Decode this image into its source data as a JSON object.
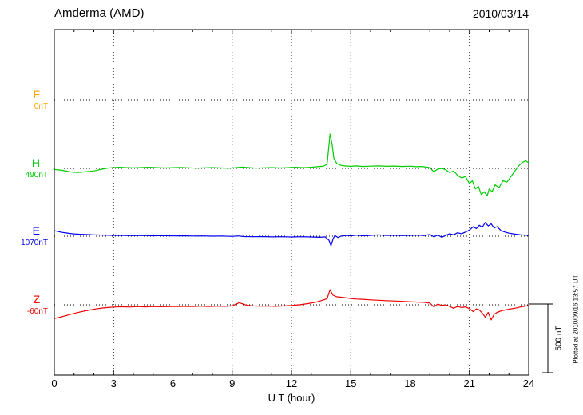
{
  "header": {
    "title": "Amderma (AMD)",
    "date": "2010/03/14"
  },
  "footer": {
    "plotted_at": "Plotted at 2010/09/16 13:57 UT"
  },
  "chart_data": {
    "type": "line",
    "title": "Amderma (AMD)",
    "date": "2010/03/14",
    "xlabel": "U T (hour)",
    "ylabel": "",
    "x_range": [
      0,
      24
    ],
    "x_ticks": [
      0,
      3,
      6,
      9,
      12,
      15,
      18,
      21,
      24
    ],
    "grid": "dotted-vertical-every-3h-and-dotted-horizontal-baselines",
    "legend_position": "left-margin",
    "scale_bar": {
      "label": "500 nT",
      "value_nT": 500
    },
    "series": [
      {
        "name": "F",
        "label": "F",
        "baseline_label": "0nT",
        "baseline_nT": 0,
        "color": "#FFA500",
        "points": []
      },
      {
        "name": "H",
        "label": "H",
        "baseline_label": "490nT",
        "baseline_nT": 490,
        "color": "#00CC00",
        "points": [
          [
            0,
            -8
          ],
          [
            0.3,
            -12
          ],
          [
            0.6,
            -20
          ],
          [
            0.9,
            -28
          ],
          [
            1.2,
            -30
          ],
          [
            1.5,
            -26
          ],
          [
            1.8,
            -22
          ],
          [
            2.1,
            -16
          ],
          [
            2.4,
            -6
          ],
          [
            2.7,
            2
          ],
          [
            3,
            6
          ],
          [
            3.3,
            8
          ],
          [
            3.6,
            6
          ],
          [
            4,
            4
          ],
          [
            4.4,
            6
          ],
          [
            4.8,
            8
          ],
          [
            5.2,
            5
          ],
          [
            5.6,
            3
          ],
          [
            6,
            5
          ],
          [
            6.4,
            7
          ],
          [
            6.8,
            4
          ],
          [
            7.2,
            2
          ],
          [
            7.6,
            4
          ],
          [
            8,
            6
          ],
          [
            8.4,
            3
          ],
          [
            8.8,
            1
          ],
          [
            9.2,
            5
          ],
          [
            9.5,
            10
          ],
          [
            9.8,
            6
          ],
          [
            10.2,
            2
          ],
          [
            10.6,
            4
          ],
          [
            11,
            6
          ],
          [
            11.4,
            3
          ],
          [
            11.8,
            5
          ],
          [
            12.2,
            8
          ],
          [
            12.6,
            5
          ],
          [
            13,
            8
          ],
          [
            13.3,
            12
          ],
          [
            13.6,
            15
          ],
          [
            13.8,
            30
          ],
          [
            13.95,
            250
          ],
          [
            14.05,
            180
          ],
          [
            14.15,
            70
          ],
          [
            14.3,
            35
          ],
          [
            14.5,
            22
          ],
          [
            14.7,
            18
          ],
          [
            15,
            15
          ],
          [
            15.3,
            18
          ],
          [
            15.6,
            14
          ],
          [
            16,
            16
          ],
          [
            16.4,
            18
          ],
          [
            16.8,
            15
          ],
          [
            17.2,
            17
          ],
          [
            17.6,
            14
          ],
          [
            18,
            16
          ],
          [
            18.3,
            12
          ],
          [
            18.6,
            14
          ],
          [
            19,
            5
          ],
          [
            19.2,
            -25
          ],
          [
            19.4,
            -5
          ],
          [
            19.6,
            0
          ],
          [
            19.8,
            -10
          ],
          [
            20,
            -30
          ],
          [
            20.2,
            -20
          ],
          [
            20.4,
            -50
          ],
          [
            20.6,
            -70
          ],
          [
            20.8,
            -60
          ],
          [
            21,
            -110
          ],
          [
            21.15,
            -90
          ],
          [
            21.3,
            -150
          ],
          [
            21.45,
            -130
          ],
          [
            21.6,
            -190
          ],
          [
            21.75,
            -170
          ],
          [
            21.9,
            -200
          ],
          [
            22,
            -150
          ],
          [
            22.15,
            -170
          ],
          [
            22.3,
            -120
          ],
          [
            22.5,
            -140
          ],
          [
            22.7,
            -90
          ],
          [
            22.9,
            -100
          ],
          [
            23.1,
            -60
          ],
          [
            23.3,
            -20
          ],
          [
            23.5,
            20
          ],
          [
            23.7,
            45
          ],
          [
            23.85,
            55
          ],
          [
            24,
            40
          ]
        ]
      },
      {
        "name": "E",
        "label": "E",
        "baseline_label": "1070nT",
        "baseline_nT": 1070,
        "color": "#0000EE",
        "points": [
          [
            0,
            40
          ],
          [
            0.2,
            34
          ],
          [
            0.4,
            28
          ],
          [
            0.6,
            24
          ],
          [
            0.8,
            20
          ],
          [
            1,
            17
          ],
          [
            1.3,
            14
          ],
          [
            1.6,
            12
          ],
          [
            2,
            10
          ],
          [
            2.5,
            8
          ],
          [
            3,
            6
          ],
          [
            3.5,
            5
          ],
          [
            4,
            4
          ],
          [
            4.5,
            5
          ],
          [
            5,
            3
          ],
          [
            5.5,
            4
          ],
          [
            6,
            2
          ],
          [
            6.5,
            3
          ],
          [
            7,
            1
          ],
          [
            7.5,
            2
          ],
          [
            8,
            0
          ],
          [
            8.5,
            1
          ],
          [
            9,
            -2
          ],
          [
            9.3,
            2
          ],
          [
            9.6,
            -3
          ],
          [
            10,
            -4
          ],
          [
            10.5,
            -3
          ],
          [
            11,
            -5
          ],
          [
            11.5,
            -4
          ],
          [
            12,
            -6
          ],
          [
            12.5,
            -4
          ],
          [
            13,
            -6
          ],
          [
            13.4,
            -8
          ],
          [
            13.7,
            -5
          ],
          [
            13.9,
            -30
          ],
          [
            14,
            -70
          ],
          [
            14.1,
            -20
          ],
          [
            14.2,
            5
          ],
          [
            14.35,
            -10
          ],
          [
            14.5,
            0
          ],
          [
            14.8,
            6
          ],
          [
            15,
            2
          ],
          [
            15.3,
            8
          ],
          [
            15.6,
            3
          ],
          [
            16,
            6
          ],
          [
            16.4,
            10
          ],
          [
            16.8,
            5
          ],
          [
            17.2,
            7
          ],
          [
            17.6,
            4
          ],
          [
            18,
            6
          ],
          [
            18.4,
            8
          ],
          [
            18.7,
            4
          ],
          [
            19,
            12
          ],
          [
            19.2,
            -5
          ],
          [
            19.4,
            8
          ],
          [
            19.6,
            -8
          ],
          [
            19.8,
            5
          ],
          [
            20,
            18
          ],
          [
            20.2,
            10
          ],
          [
            20.4,
            25
          ],
          [
            20.6,
            18
          ],
          [
            20.8,
            30
          ],
          [
            21,
            45
          ],
          [
            21.2,
            70
          ],
          [
            21.35,
            55
          ],
          [
            21.5,
            80
          ],
          [
            21.65,
            65
          ],
          [
            21.8,
            100
          ],
          [
            21.95,
            75
          ],
          [
            22.1,
            90
          ],
          [
            22.25,
            60
          ],
          [
            22.4,
            70
          ],
          [
            22.6,
            40
          ],
          [
            22.8,
            30
          ],
          [
            23,
            22
          ],
          [
            23.3,
            15
          ],
          [
            23.6,
            10
          ],
          [
            24,
            6
          ]
        ]
      },
      {
        "name": "Z",
        "label": "Z",
        "baseline_label": "-60nT",
        "baseline_nT": -60,
        "color": "#EE0000",
        "points": [
          [
            0,
            -100
          ],
          [
            0.3,
            -90
          ],
          [
            0.6,
            -78
          ],
          [
            0.9,
            -66
          ],
          [
            1.2,
            -56
          ],
          [
            1.5,
            -46
          ],
          [
            1.8,
            -38
          ],
          [
            2.1,
            -30
          ],
          [
            2.4,
            -24
          ],
          [
            2.7,
            -20
          ],
          [
            3,
            -16
          ],
          [
            3.4,
            -14
          ],
          [
            3.8,
            -16
          ],
          [
            4.2,
            -13
          ],
          [
            4.6,
            -15
          ],
          [
            5,
            -12
          ],
          [
            5.4,
            -14
          ],
          [
            5.8,
            -12
          ],
          [
            6.2,
            -13
          ],
          [
            6.6,
            -11
          ],
          [
            7,
            -12
          ],
          [
            7.4,
            -10
          ],
          [
            7.8,
            -12
          ],
          [
            8.2,
            -10
          ],
          [
            8.6,
            -11
          ],
          [
            9,
            -8
          ],
          [
            9.2,
            5
          ],
          [
            9.35,
            15
          ],
          [
            9.5,
            8
          ],
          [
            9.7,
            -2
          ],
          [
            10,
            -8
          ],
          [
            10.4,
            -10
          ],
          [
            10.8,
            -9
          ],
          [
            11.2,
            -11
          ],
          [
            11.6,
            -8
          ],
          [
            12,
            -5
          ],
          [
            12.4,
            0
          ],
          [
            12.8,
            8
          ],
          [
            13.2,
            18
          ],
          [
            13.5,
            30
          ],
          [
            13.8,
            45
          ],
          [
            13.95,
            110
          ],
          [
            14.1,
            70
          ],
          [
            14.3,
            58
          ],
          [
            14.5,
            55
          ],
          [
            14.8,
            50
          ],
          [
            15,
            46
          ],
          [
            15.3,
            42
          ],
          [
            15.6,
            40
          ],
          [
            16,
            36
          ],
          [
            16.4,
            33
          ],
          [
            16.8,
            30
          ],
          [
            17.2,
            28
          ],
          [
            17.6,
            25
          ],
          [
            18,
            22
          ],
          [
            18.4,
            20
          ],
          [
            18.7,
            18
          ],
          [
            19,
            12
          ],
          [
            19.2,
            -15
          ],
          [
            19.4,
            5
          ],
          [
            19.6,
            -5
          ],
          [
            19.8,
            0
          ],
          [
            20,
            -12
          ],
          [
            20.2,
            -25
          ],
          [
            20.4,
            -12
          ],
          [
            20.6,
            -20
          ],
          [
            20.8,
            -15
          ],
          [
            21,
            -28
          ],
          [
            21.2,
            -50
          ],
          [
            21.35,
            -30
          ],
          [
            21.5,
            -38
          ],
          [
            21.65,
            -60
          ],
          [
            21.8,
            -90
          ],
          [
            21.95,
            -55
          ],
          [
            22.1,
            -110
          ],
          [
            22.25,
            -70
          ],
          [
            22.4,
            -55
          ],
          [
            22.6,
            -45
          ],
          [
            22.8,
            -38
          ],
          [
            23,
            -32
          ],
          [
            23.3,
            -25
          ],
          [
            23.6,
            -15
          ],
          [
            24,
            -5
          ]
        ]
      }
    ]
  }
}
